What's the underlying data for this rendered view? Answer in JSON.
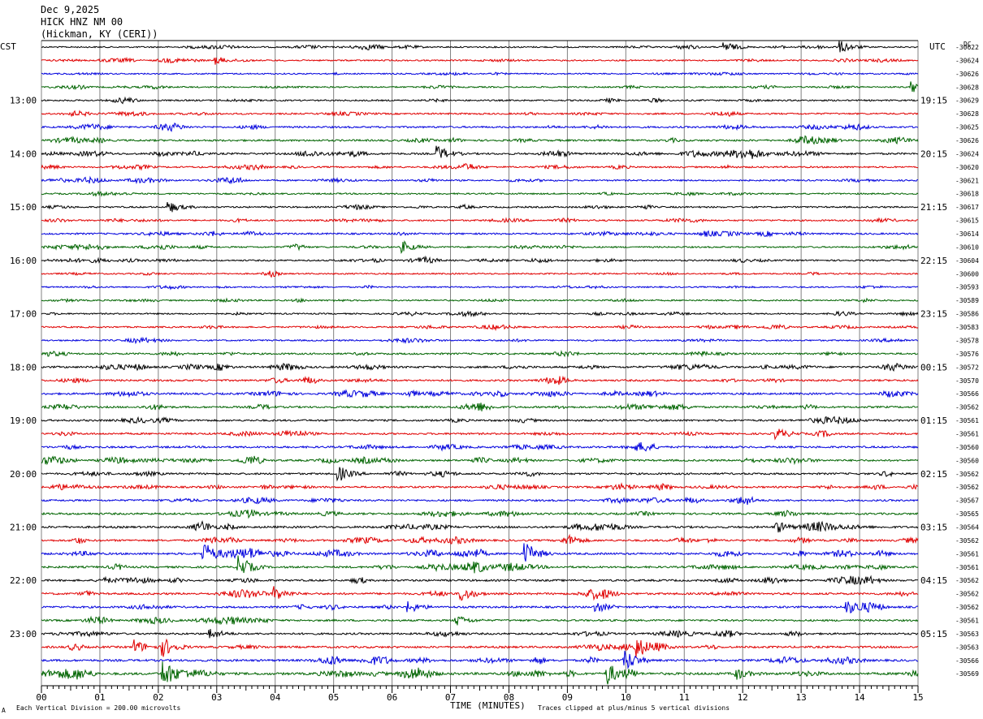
{
  "header": {
    "date": "Dec 9,2025",
    "station": "HICK HNZ NM 00",
    "location": "(Hickman, KY (CERI))",
    "left_tz": "CST",
    "right_tz": "UTC",
    "dc_label": "DC"
  },
  "footer": {
    "scale_note": "Each Vertical Division =  200.00 microvolts",
    "clip_note": "Traces clipped at plus/minus 5 vertical divisions",
    "corner_mark": "A"
  },
  "colors": {
    "trace_cycle": [
      "#000000",
      "#e00000",
      "#0000dd",
      "#006400"
    ],
    "grid": "#808080"
  },
  "chart_data": {
    "type": "line",
    "subtype": "helicorder",
    "xlabel": "TIME (MINUTES)",
    "xlim": [
      0,
      15
    ],
    "x_ticks": [
      "00",
      "01",
      "02",
      "03",
      "04",
      "05",
      "06",
      "07",
      "08",
      "09",
      "10",
      "11",
      "12",
      "13",
      "14",
      "15"
    ],
    "grid": true,
    "traces_per_hour": 4,
    "left_hour_labels": [
      "13:00",
      "14:00",
      "15:00",
      "16:00",
      "17:00",
      "18:00",
      "19:00",
      "20:00",
      "21:00",
      "22:00",
      "23:00"
    ],
    "right_hour_labels": [
      "19:15",
      "20:15",
      "21:15",
      "22:15",
      "23:15",
      "00:15",
      "01:15",
      "02:15",
      "03:15",
      "04:15",
      "05:15"
    ],
    "hour_label_start_row": 4,
    "dc_offsets": [
      -30622,
      -30624,
      -30626,
      -30628,
      -30629,
      -30628,
      -30625,
      -30626,
      -30624,
      -30620,
      -30621,
      -30618,
      -30617,
      -30615,
      -30614,
      -30610,
      -30604,
      -30600,
      -30593,
      -30589,
      -30586,
      -30583,
      -30578,
      -30576,
      -30572,
      -30570,
      -30566,
      -30562,
      -30561,
      -30561,
      -30560,
      -30560,
      -30562,
      -30562,
      -30567,
      -30565,
      -30564,
      -30562,
      -30561,
      -30561,
      -30562,
      -30562,
      -30562,
      -30561,
      -30563,
      -30563,
      -30566,
      -30569
    ],
    "trace_activity": [
      0.25,
      0.25,
      0.2,
      0.25,
      0.3,
      0.35,
      0.45,
      0.5,
      0.5,
      0.35,
      0.3,
      0.3,
      0.35,
      0.35,
      0.4,
      0.3,
      0.3,
      0.25,
      0.2,
      0.25,
      0.25,
      0.3,
      0.3,
      0.45,
      0.55,
      0.5,
      0.55,
      0.5,
      0.5,
      0.5,
      0.55,
      0.5,
      0.5,
      0.5,
      0.5,
      0.55,
      0.6,
      0.55,
      0.6,
      0.55,
      0.55,
      0.6,
      0.55,
      0.5,
      0.5,
      0.6,
      0.65,
      0.8
    ],
    "events": [
      {
        "trace": 0,
        "minute": 11.7,
        "amp": 3
      },
      {
        "trace": 0,
        "minute": 13.7,
        "amp": 3
      },
      {
        "trace": 1,
        "minute": 3.0,
        "amp": 2
      },
      {
        "trace": 3,
        "minute": 14.9,
        "amp": 3
      },
      {
        "trace": 8,
        "minute": 6.8,
        "amp": 4
      },
      {
        "trace": 12,
        "minute": 2.2,
        "amp": 3
      },
      {
        "trace": 15,
        "minute": 6.2,
        "amp": 3
      },
      {
        "trace": 29,
        "minute": 12.6,
        "amp": 3
      },
      {
        "trace": 32,
        "minute": 5.1,
        "amp": 4
      },
      {
        "trace": 36,
        "minute": 12.6,
        "amp": 3
      },
      {
        "trace": 38,
        "minute": 2.8,
        "amp": 6
      },
      {
        "trace": 38,
        "minute": 8.3,
        "amp": 6
      },
      {
        "trace": 39,
        "minute": 3.4,
        "amp": 6
      },
      {
        "trace": 41,
        "minute": 4.0,
        "amp": 4
      },
      {
        "trace": 41,
        "minute": 7.2,
        "amp": 4
      },
      {
        "trace": 42,
        "minute": 6.3,
        "amp": 3
      },
      {
        "trace": 42,
        "minute": 9.5,
        "amp": 3
      },
      {
        "trace": 42,
        "minute": 13.8,
        "amp": 3
      },
      {
        "trace": 43,
        "minute": 7.1,
        "amp": 3
      },
      {
        "trace": 44,
        "minute": 2.9,
        "amp": 3
      },
      {
        "trace": 45,
        "minute": 1.6,
        "amp": 4
      },
      {
        "trace": 45,
        "minute": 2.1,
        "amp": 5
      },
      {
        "trace": 45,
        "minute": 10.2,
        "amp": 5
      },
      {
        "trace": 46,
        "minute": 10.0,
        "amp": 6
      },
      {
        "trace": 47,
        "minute": 2.1,
        "amp": 8
      },
      {
        "trace": 47,
        "minute": 9.7,
        "amp": 6
      },
      {
        "trace": 47,
        "minute": 11.9,
        "amp": 3
      }
    ]
  }
}
